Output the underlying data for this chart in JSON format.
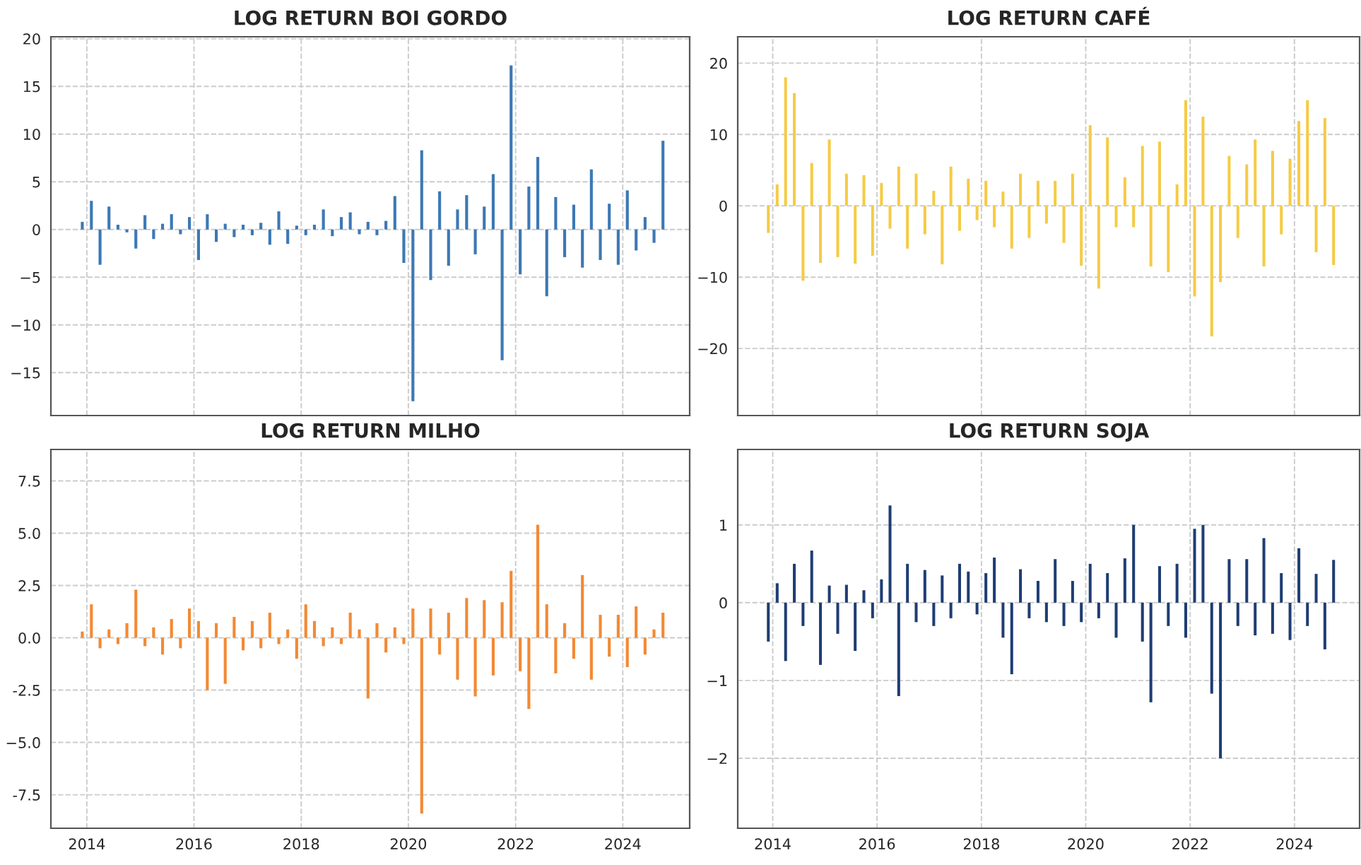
{
  "chart_data": [
    {
      "type": "bar",
      "title": "LOG RETURN BOI GORDO",
      "tick_labels": "y",
      "grid": true,
      "x": [
        "2013-12",
        "2014-02",
        "2014-04",
        "2014-06",
        "2014-08",
        "2014-10",
        "2014-12",
        "2015-02",
        "2015-04",
        "2015-06",
        "2015-08",
        "2015-10",
        "2015-12",
        "2016-02",
        "2016-04",
        "2016-06",
        "2016-08",
        "2016-10",
        "2016-12",
        "2017-02",
        "2017-04",
        "2017-06",
        "2017-08",
        "2017-10",
        "2017-12",
        "2018-02",
        "2018-04",
        "2018-06",
        "2018-08",
        "2018-10",
        "2018-12",
        "2019-02",
        "2019-04",
        "2019-06",
        "2019-08",
        "2019-10",
        "2019-12",
        "2020-02",
        "2020-04",
        "2020-06",
        "2020-08",
        "2020-10",
        "2020-12",
        "2021-02",
        "2021-04",
        "2021-06",
        "2021-08",
        "2021-10",
        "2021-12",
        "2022-02",
        "2022-04",
        "2022-06",
        "2022-08",
        "2022-10",
        "2022-12",
        "2023-02",
        "2023-04",
        "2023-06",
        "2023-08",
        "2023-10",
        "2023-12",
        "2024-02",
        "2024-04",
        "2024-06",
        "2024-08",
        "2024-10"
      ],
      "series": [
        {
          "color": "#3d78b4",
          "values": [
            0.8,
            3,
            -3.7,
            2.4,
            0.5,
            -0.3,
            -2,
            1.5,
            -1,
            0.6,
            1.6,
            -0.5,
            1.3,
            -3.2,
            1.6,
            -1.3,
            0.6,
            -0.8,
            0.5,
            -0.6,
            0.7,
            -1.6,
            1.9,
            -1.5,
            0.4,
            -0.6,
            0.5,
            2.1,
            -0.7,
            1.3,
            1.8,
            -0.5,
            0.8,
            -0.6,
            0.9,
            3.5,
            -3.5,
            -18,
            8.3,
            -5.3,
            4,
            -3.8,
            2.1,
            3.6,
            -2.6,
            2.4,
            5.8,
            -13.7,
            17.2,
            -4.7,
            4.5,
            7.6,
            -7,
            3.4,
            -2.9,
            2.6,
            -4,
            6.3,
            -3.2,
            2.7,
            -3.7,
            4.1,
            -2.2,
            1.3,
            -1.4,
            9.3
          ]
        }
      ],
      "xlim": [
        "2013-05",
        "2025-04"
      ],
      "xticks": [
        "2014",
        "2016",
        "2018",
        "2020",
        "2022",
        "2024"
      ],
      "ylim": [
        -19.5,
        20.2
      ],
      "yticks": [
        -15,
        -10,
        -5,
        0,
        5,
        10,
        15,
        20
      ]
    },
    {
      "type": "bar",
      "title": "LOG RETURN CAFÉ",
      "tick_labels": "y",
      "grid": true,
      "x": [
        "2013-12",
        "2014-02",
        "2014-04",
        "2014-06",
        "2014-08",
        "2014-10",
        "2014-12",
        "2015-02",
        "2015-04",
        "2015-06",
        "2015-08",
        "2015-10",
        "2015-12",
        "2016-02",
        "2016-04",
        "2016-06",
        "2016-08",
        "2016-10",
        "2016-12",
        "2017-02",
        "2017-04",
        "2017-06",
        "2017-08",
        "2017-10",
        "2017-12",
        "2018-02",
        "2018-04",
        "2018-06",
        "2018-08",
        "2018-10",
        "2018-12",
        "2019-02",
        "2019-04",
        "2019-06",
        "2019-08",
        "2019-10",
        "2019-12",
        "2020-02",
        "2020-04",
        "2020-06",
        "2020-08",
        "2020-10",
        "2020-12",
        "2021-02",
        "2021-04",
        "2021-06",
        "2021-08",
        "2021-10",
        "2021-12",
        "2022-02",
        "2022-04",
        "2022-06",
        "2022-08",
        "2022-10",
        "2022-12",
        "2023-02",
        "2023-04",
        "2023-06",
        "2023-08",
        "2023-10",
        "2023-12",
        "2024-02",
        "2024-04",
        "2024-06",
        "2024-08",
        "2024-10"
      ],
      "series": [
        {
          "color": "#f5cb45",
          "values": [
            -3.8,
            3,
            18,
            15.8,
            -10.5,
            6,
            -8,
            9.3,
            -7.2,
            4.5,
            -8.1,
            4.3,
            -7,
            3.2,
            -3.2,
            5.5,
            -6,
            4.5,
            -4,
            2.1,
            -8.2,
            5.5,
            -3.5,
            3.8,
            -2,
            3.5,
            -3,
            2,
            -6,
            4.5,
            -4.5,
            3.5,
            -2.5,
            3.5,
            -5.2,
            4.5,
            -8.4,
            11.3,
            -11.6,
            9.6,
            -3,
            4,
            -3,
            8.4,
            -8.5,
            9,
            -9.3,
            3,
            14.8,
            -12.7,
            12.5,
            -18.3,
            -10.7,
            7,
            -4.5,
            5.8,
            9.3,
            -8.5,
            7.7,
            -4,
            6.6,
            11.9,
            14.8,
            -6.5,
            12.3,
            -8.3
          ]
        }
      ],
      "xlim": [
        "2013-05",
        "2025-04"
      ],
      "xticks": [
        "2014",
        "2016",
        "2018",
        "2020",
        "2022",
        "2024"
      ],
      "ylim": [
        -29.4,
        23.7
      ],
      "yticks": [
        -20,
        -10,
        0,
        10,
        20
      ]
    },
    {
      "type": "bar",
      "title": "LOG RETURN MILHO",
      "grid": true,
      "x": [
        "2013-12",
        "2014-02",
        "2014-04",
        "2014-06",
        "2014-08",
        "2014-10",
        "2014-12",
        "2015-02",
        "2015-04",
        "2015-06",
        "2015-08",
        "2015-10",
        "2015-12",
        "2016-02",
        "2016-04",
        "2016-06",
        "2016-08",
        "2016-10",
        "2016-12",
        "2017-02",
        "2017-04",
        "2017-06",
        "2017-08",
        "2017-10",
        "2017-12",
        "2018-02",
        "2018-04",
        "2018-06",
        "2018-08",
        "2018-10",
        "2018-12",
        "2019-02",
        "2019-04",
        "2019-06",
        "2019-08",
        "2019-10",
        "2019-12",
        "2020-02",
        "2020-04",
        "2020-06",
        "2020-08",
        "2020-10",
        "2020-12",
        "2021-02",
        "2021-04",
        "2021-06",
        "2021-08",
        "2021-10",
        "2021-12",
        "2022-02",
        "2022-04",
        "2022-06",
        "2022-08",
        "2022-10",
        "2022-12",
        "2023-02",
        "2023-04",
        "2023-06",
        "2023-08",
        "2023-10",
        "2023-12",
        "2024-02",
        "2024-04",
        "2024-06",
        "2024-08",
        "2024-10"
      ],
      "series": [
        {
          "color": "#f28a35",
          "values": [
            0.3,
            1.6,
            -0.5,
            0.4,
            -0.3,
            0.7,
            2.3,
            -0.4,
            0.5,
            -0.8,
            0.9,
            -0.5,
            1.4,
            0.8,
            -2.5,
            0.7,
            -2.2,
            1,
            -0.6,
            0.8,
            -0.5,
            1.2,
            -0.3,
            0.4,
            -1,
            1.6,
            0.8,
            -0.4,
            0.5,
            -0.3,
            1.2,
            0.4,
            -2.9,
            0.7,
            -0.7,
            0.5,
            -0.3,
            1.4,
            -8.4,
            1.4,
            -0.8,
            1.2,
            -2,
            1.9,
            -2.8,
            1.8,
            -1.8,
            1.7,
            3.2,
            -1.6,
            -3.4,
            5.4,
            1.6,
            -1.7,
            0.7,
            -1,
            3,
            -2,
            1.1,
            -0.9,
            1.1,
            -1.4,
            1.5,
            -0.8,
            0.4,
            1.2
          ]
        }
      ],
      "xlim": [
        "2013-05",
        "2025-04"
      ],
      "xticks": [
        "2014",
        "2016",
        "2018",
        "2020",
        "2022",
        "2024"
      ],
      "ylim": [
        -9.1,
        9.0
      ],
      "yticks": [
        -7.5,
        {
          "value": -5,
          "label": "−5.0"
        },
        -2.5,
        {
          "value": 0,
          "label": "0.0"
        },
        2.5,
        {
          "value": 5,
          "label": "5.0"
        },
        7.5
      ]
    },
    {
      "type": "bar",
      "title": "LOG RETURN SOJA",
      "grid": true,
      "x": [
        "2013-12",
        "2014-02",
        "2014-04",
        "2014-06",
        "2014-08",
        "2014-10",
        "2014-12",
        "2015-02",
        "2015-04",
        "2015-06",
        "2015-08",
        "2015-10",
        "2015-12",
        "2016-02",
        "2016-04",
        "2016-06",
        "2016-08",
        "2016-10",
        "2016-12",
        "2017-02",
        "2017-04",
        "2017-06",
        "2017-08",
        "2017-10",
        "2017-12",
        "2018-02",
        "2018-04",
        "2018-06",
        "2018-08",
        "2018-10",
        "2018-12",
        "2019-02",
        "2019-04",
        "2019-06",
        "2019-08",
        "2019-10",
        "2019-12",
        "2020-02",
        "2020-04",
        "2020-06",
        "2020-08",
        "2020-10",
        "2020-12",
        "2021-02",
        "2021-04",
        "2021-06",
        "2021-08",
        "2021-10",
        "2021-12",
        "2022-02",
        "2022-04",
        "2022-06",
        "2022-08",
        "2022-10",
        "2022-12",
        "2023-02",
        "2023-04",
        "2023-06",
        "2023-08",
        "2023-10",
        "2023-12",
        "2024-02",
        "2024-04",
        "2024-06",
        "2024-08",
        "2024-10"
      ],
      "series": [
        {
          "color": "#1f3d73",
          "values": [
            -0.5,
            0.25,
            -0.75,
            0.5,
            -0.3,
            0.67,
            -0.8,
            0.22,
            -0.4,
            0.23,
            -0.62,
            0.16,
            -0.2,
            0.3,
            1.25,
            -1.2,
            0.5,
            -0.25,
            0.42,
            -0.3,
            0.35,
            -0.2,
            0.5,
            0.4,
            -0.15,
            0.38,
            0.58,
            -0.45,
            -0.92,
            0.43,
            -0.2,
            0.28,
            -0.25,
            0.56,
            -0.3,
            0.28,
            -0.25,
            0.5,
            -0.2,
            0.38,
            -0.45,
            0.57,
            1.0,
            -0.5,
            -1.28,
            0.47,
            -0.3,
            0.5,
            -0.45,
            0.95,
            1.0,
            -1.17,
            -2.0,
            0.56,
            -0.3,
            0.56,
            -0.42,
            0.83,
            -0.4,
            0.38,
            -0.48,
            0.7,
            -0.3,
            0.37,
            -0.6,
            0.55
          ]
        }
      ],
      "xlim": [
        "2013-05",
        "2025-04"
      ],
      "xticks": [
        "2014",
        "2016",
        "2018",
        "2020",
        "2022",
        "2024"
      ],
      "ylim": [
        -2.9,
        1.97
      ],
      "yticks": [
        -2,
        -1,
        0,
        1
      ]
    }
  ]
}
